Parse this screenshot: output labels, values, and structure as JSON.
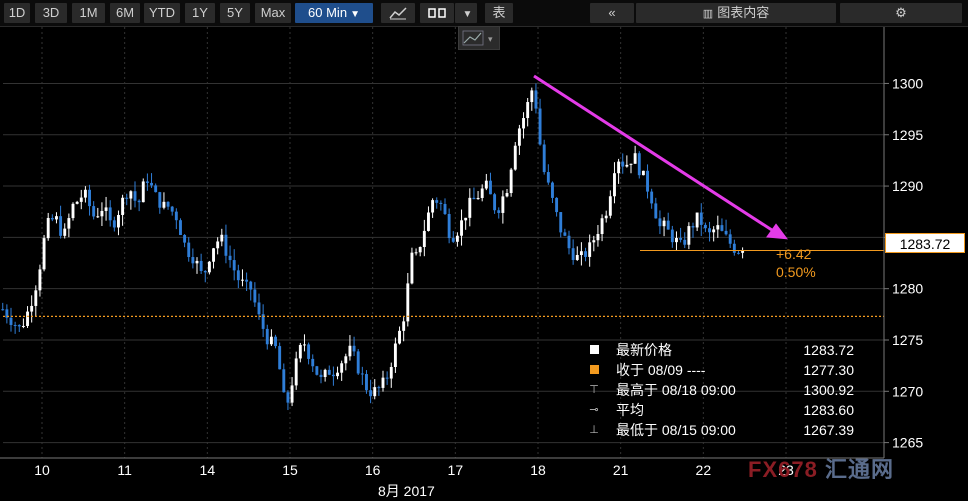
{
  "toolbar": {
    "ranges": [
      "1D",
      "3D",
      "1M",
      "6M",
      "YTD",
      "1Y",
      "5Y",
      "Max"
    ],
    "interval": "60 Min",
    "table_label": "表",
    "content_label": "图表内容"
  },
  "colors": {
    "background": "#000000",
    "candle_up": "#ffffff",
    "candle_down": "#2f7ed8",
    "prev_close_line": "#f29a1f",
    "trend_arrow": "#e43be8",
    "grid": "#333333"
  },
  "change": {
    "abs": "+6.42",
    "pct": "0.50%"
  },
  "last_price_label": "1283.72",
  "legend": [
    {
      "sym": "white-box",
      "label": "最新价格",
      "value": "1283.72"
    },
    {
      "sym": "orange-box",
      "label": "收于 08/09 ----",
      "value": "1277.30"
    },
    {
      "sym": "high-marker",
      "label": "最高于 08/18 09:00",
      "value": "1300.92"
    },
    {
      "sym": "avg-marker",
      "label": "平均",
      "value": "1283.60"
    },
    {
      "sym": "low-marker",
      "label": "最低于 08/15 09:00",
      "value": "1267.39"
    }
  ],
  "month_label": "8月 2017",
  "watermark": {
    "a": "FX678",
    "b": "汇通网"
  },
  "chart_data": {
    "type": "candlestick",
    "x_ticks": [
      "10",
      "11",
      "14",
      "15",
      "16",
      "17",
      "18",
      "21",
      "22",
      "23"
    ],
    "y_ticks": [
      1265,
      1270,
      1275,
      1280,
      1285,
      1290,
      1295,
      1300
    ],
    "ylim": [
      1263.5,
      1305.5
    ],
    "last_price": 1283.72,
    "prev_close": 1277.3,
    "prev_close_date": "08/09",
    "high": {
      "value": 1300.92,
      "time": "08/18 09:00"
    },
    "low": {
      "value": 1267.39,
      "time": "08/15 09:00"
    },
    "average": 1283.6,
    "change_abs": 6.42,
    "change_pct": 0.5,
    "trend_arrow": {
      "from_close": 1300.92,
      "to": 1284.8
    },
    "days": [
      {
        "label": "10",
        "path": [
          1278,
          1277,
          1276,
          1278,
          1281,
          1286,
          1287,
          1285,
          1288,
          1289
        ]
      },
      {
        "label": "11",
        "path": [
          1289,
          1287,
          1288,
          1286,
          1288,
          1290,
          1288,
          1291,
          1289,
          1288
        ]
      },
      {
        "label": "14",
        "path": [
          1288,
          1287,
          1284,
          1283,
          1281,
          1284,
          1285,
          1283,
          1281,
          1280
        ]
      },
      {
        "label": "15",
        "path": [
          1280,
          1277,
          1275,
          1274,
          1268,
          1272,
          1275,
          1273,
          1271,
          1272
        ]
      },
      {
        "label": "16",
        "path": [
          1272,
          1273,
          1274,
          1272,
          1270,
          1270,
          1271,
          1274,
          1277,
          1283
        ]
      },
      {
        "label": "17",
        "path": [
          1283,
          1286,
          1289,
          1288,
          1285,
          1286,
          1288,
          1289,
          1290,
          1288
        ]
      },
      {
        "label": "18",
        "path": [
          1288,
          1290,
          1295,
          1297,
          1300,
          1292,
          1289,
          1286,
          1284,
          1283
        ]
      },
      {
        "label": "21",
        "path": [
          1283,
          1284,
          1286,
          1288,
          1293,
          1292,
          1293,
          1291,
          1289,
          1286
        ]
      },
      {
        "label": "22",
        "path": [
          1286,
          1285,
          1284,
          1286,
          1287,
          1285,
          1286,
          1285,
          1284,
          1283.72
        ]
      }
    ]
  }
}
